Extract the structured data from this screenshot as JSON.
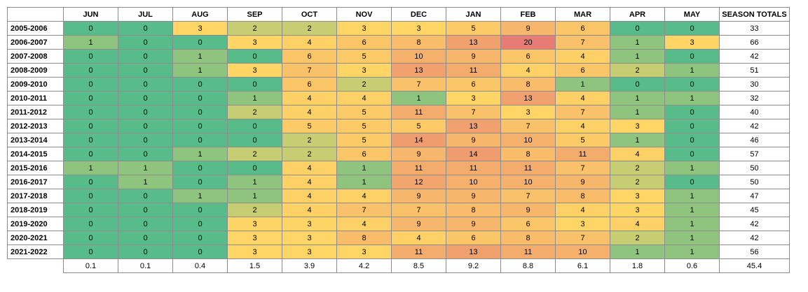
{
  "chart_data": {
    "type": "heatmap",
    "columns": [
      "JUN",
      "JUL",
      "AUG",
      "SEP",
      "OCT",
      "NOV",
      "DEC",
      "JAN",
      "FEB",
      "MAR",
      "APR",
      "MAY"
    ],
    "total_header": "SEASON TOTALS",
    "rows": [
      {
        "season": "2005-2006",
        "values": [
          0,
          0,
          3,
          2,
          2,
          3,
          3,
          5,
          9,
          6,
          0,
          0
        ],
        "total": "33"
      },
      {
        "season": "2006-2007",
        "values": [
          1,
          0,
          0,
          3,
          4,
          6,
          8,
          13,
          20,
          7,
          1,
          3
        ],
        "total": "66"
      },
      {
        "season": "2007-2008",
        "values": [
          0,
          0,
          1,
          0,
          6,
          5,
          10,
          9,
          6,
          4,
          1,
          0
        ],
        "total": "42"
      },
      {
        "season": "2008-2009",
        "values": [
          0,
          0,
          1,
          3,
          7,
          3,
          13,
          11,
          4,
          6,
          2,
          1
        ],
        "total": "51"
      },
      {
        "season": "2009-2010",
        "values": [
          0,
          0,
          0,
          0,
          6,
          2,
          7,
          6,
          8,
          1,
          0,
          0
        ],
        "total": "30"
      },
      {
        "season": "2010-2011",
        "values": [
          0,
          0,
          0,
          1,
          4,
          4,
          1,
          3,
          13,
          4,
          1,
          1
        ],
        "total": "32"
      },
      {
        "season": "2011-2012",
        "values": [
          0,
          0,
          0,
          2,
          4,
          5,
          11,
          7,
          3,
          7,
          1,
          0
        ],
        "total": "40"
      },
      {
        "season": "2012-2013",
        "values": [
          0,
          0,
          0,
          0,
          5,
          5,
          5,
          13,
          7,
          4,
          3,
          0
        ],
        "total": "42"
      },
      {
        "season": "2013-2014",
        "values": [
          0,
          0,
          0,
          0,
          2,
          5,
          14,
          9,
          10,
          5,
          1,
          0
        ],
        "total": "46"
      },
      {
        "season": "2014-2015",
        "values": [
          0,
          0,
          1,
          2,
          2,
          6,
          9,
          14,
          8,
          11,
          4,
          0
        ],
        "total": "57"
      },
      {
        "season": "2015-2016",
        "values": [
          1,
          1,
          0,
          0,
          4,
          1,
          11,
          11,
          11,
          7,
          2,
          1
        ],
        "total": "50"
      },
      {
        "season": "2016-2017",
        "values": [
          0,
          1,
          0,
          1,
          4,
          1,
          12,
          10,
          10,
          9,
          2,
          0
        ],
        "total": "50"
      },
      {
        "season": "2017-2018",
        "values": [
          0,
          0,
          1,
          1,
          4,
          4,
          9,
          9,
          7,
          8,
          3,
          1
        ],
        "total": "47"
      },
      {
        "season": "2018-2019",
        "values": [
          0,
          0,
          0,
          2,
          4,
          7,
          7,
          8,
          9,
          4,
          3,
          1
        ],
        "total": "45"
      },
      {
        "season": "2019-2020",
        "values": [
          0,
          0,
          0,
          3,
          3,
          4,
          9,
          9,
          6,
          3,
          4,
          1
        ],
        "total": "42"
      },
      {
        "season": "2020-2021",
        "values": [
          0,
          0,
          0,
          3,
          3,
          8,
          4,
          6,
          8,
          7,
          2,
          1
        ],
        "total": "42"
      },
      {
        "season": "2021-2022",
        "values": [
          0,
          0,
          0,
          3,
          3,
          3,
          11,
          13,
          11,
          10,
          1,
          1
        ],
        "total": "56"
      }
    ],
    "averages": [
      "0.1",
      "0.1",
      "0.4",
      "1.5",
      "3.9",
      "4.2",
      "8.5",
      "9.2",
      "8.8",
      "6.1",
      "1.8",
      "0.6"
    ],
    "average_total": "45.4",
    "color_scale": {
      "stops": [
        {
          "value": 0,
          "color": "#57bb8a"
        },
        {
          "value": 3,
          "color": "#ffd666"
        },
        {
          "value": 20,
          "color": "#e67c73"
        }
      ]
    }
  }
}
